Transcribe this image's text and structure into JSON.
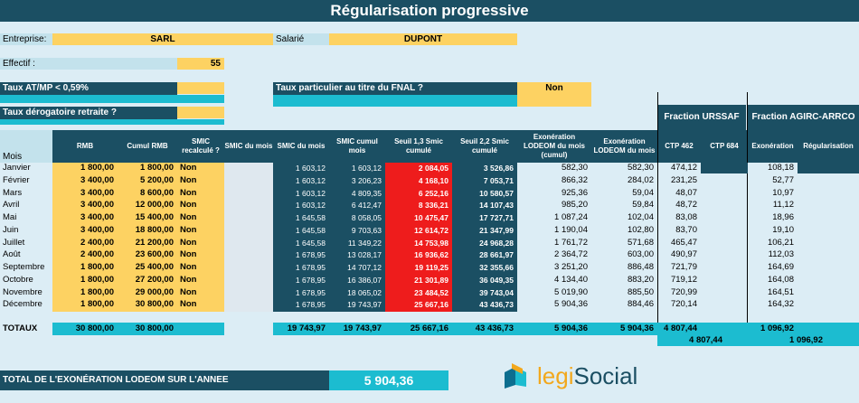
{
  "title": "Régularisation progressive",
  "header": {
    "entreprise_label": "Entreprise:",
    "entreprise_value": "SARL",
    "salarie_label": "Salarié",
    "salarie_value": "DUPONT",
    "effectif_label": "Effectif :",
    "effectif_value": "55",
    "taux_atmp_label": "Taux AT/MP < 0,59%",
    "taux_fnal_label": "Taux particulier au titre du FNAL ?",
    "taux_fnal_value": "Non",
    "taux_derog_label": "Taux dérogatoire retraite ?"
  },
  "fractions": {
    "urssaf": "Fraction URSSAF",
    "agirc": "Fraction AGIRC-ARRCO"
  },
  "columns": {
    "mois": "Mois",
    "rmb": "RMB",
    "cumul_rmb": "Cumul RMB",
    "smic_recalc": "SMIC recalculé ?",
    "smic_du_mois_1": "SMIC du mois",
    "smic_du_mois_2": "SMIC du mois",
    "smic_cumul": "SMIC cumul mois",
    "seuil13": "Seuil 1,3 Smic cumulé",
    "seuil22": "Seuil 2,2 Smic cumulé",
    "exo_cumul": "Exonération LODEOM du mois (cumul)",
    "exo_mois": "Exonération LODEOM du mois",
    "ctp462": "CTP 462",
    "ctp684": "CTP 684",
    "exoneration": "Exonération",
    "regularisation": "Régularisation"
  },
  "rows": [
    {
      "mois": "Janvier",
      "rmb": "1 800,00",
      "cumul": "1 800,00",
      "recalc": "Non",
      "smic": "1 603,12",
      "smic_cumul": "1 603,12",
      "seuil13": "2 084,05",
      "seuil22": "3 526,86",
      "exo_cumul": "582,30",
      "exo_mois": "582,30",
      "ctp462": "474,12",
      "ctp684": "",
      "agirc_exo": "108,18",
      "regul": ""
    },
    {
      "mois": "Février",
      "rmb": "3 400,00",
      "cumul": "5 200,00",
      "recalc": "Non",
      "smic": "1 603,12",
      "smic_cumul": "3 206,23",
      "seuil13": "4 168,10",
      "seuil22": "7 053,71",
      "exo_cumul": "866,32",
      "exo_mois": "284,02",
      "ctp462": "231,25",
      "ctp684": "",
      "agirc_exo": "52,77",
      "regul": ""
    },
    {
      "mois": "Mars",
      "rmb": "3 400,00",
      "cumul": "8 600,00",
      "recalc": "Non",
      "smic": "1 603,12",
      "smic_cumul": "4 809,35",
      "seuil13": "6 252,16",
      "seuil22": "10 580,57",
      "exo_cumul": "925,36",
      "exo_mois": "59,04",
      "ctp462": "48,07",
      "ctp684": "",
      "agirc_exo": "10,97",
      "regul": ""
    },
    {
      "mois": "Avril",
      "rmb": "3 400,00",
      "cumul": "12 000,00",
      "recalc": "Non",
      "smic": "1 603,12",
      "smic_cumul": "6 412,47",
      "seuil13": "8 336,21",
      "seuil22": "14 107,43",
      "exo_cumul": "985,20",
      "exo_mois": "59,84",
      "ctp462": "48,72",
      "ctp684": "",
      "agirc_exo": "11,12",
      "regul": ""
    },
    {
      "mois": "Mai",
      "rmb": "3 400,00",
      "cumul": "15 400,00",
      "recalc": "Non",
      "smic": "1 645,58",
      "smic_cumul": "8 058,05",
      "seuil13": "10 475,47",
      "seuil22": "17 727,71",
      "exo_cumul": "1 087,24",
      "exo_mois": "102,04",
      "ctp462": "83,08",
      "ctp684": "",
      "agirc_exo": "18,96",
      "regul": ""
    },
    {
      "mois": "Juin",
      "rmb": "3 400,00",
      "cumul": "18 800,00",
      "recalc": "Non",
      "smic": "1 645,58",
      "smic_cumul": "9 703,63",
      "seuil13": "12 614,72",
      "seuil22": "21 347,99",
      "exo_cumul": "1 190,04",
      "exo_mois": "102,80",
      "ctp462": "83,70",
      "ctp684": "",
      "agirc_exo": "19,10",
      "regul": ""
    },
    {
      "mois": "Juillet",
      "rmb": "2 400,00",
      "cumul": "21 200,00",
      "recalc": "Non",
      "smic": "1 645,58",
      "smic_cumul": "11 349,22",
      "seuil13": "14 753,98",
      "seuil22": "24 968,28",
      "exo_cumul": "1 761,72",
      "exo_mois": "571,68",
      "ctp462": "465,47",
      "ctp684": "",
      "agirc_exo": "106,21",
      "regul": ""
    },
    {
      "mois": "Août",
      "rmb": "2 400,00",
      "cumul": "23 600,00",
      "recalc": "Non",
      "smic": "1 678,95",
      "smic_cumul": "13 028,17",
      "seuil13": "16 936,62",
      "seuil22": "28 661,97",
      "exo_cumul": "2 364,72",
      "exo_mois": "603,00",
      "ctp462": "490,97",
      "ctp684": "",
      "agirc_exo": "112,03",
      "regul": ""
    },
    {
      "mois": "Septembre",
      "rmb": "1 800,00",
      "cumul": "25 400,00",
      "recalc": "Non",
      "smic": "1 678,95",
      "smic_cumul": "14 707,12",
      "seuil13": "19 119,25",
      "seuil22": "32 355,66",
      "exo_cumul": "3 251,20",
      "exo_mois": "886,48",
      "ctp462": "721,79",
      "ctp684": "",
      "agirc_exo": "164,69",
      "regul": ""
    },
    {
      "mois": "Octobre",
      "rmb": "1 800,00",
      "cumul": "27 200,00",
      "recalc": "Non",
      "smic": "1 678,95",
      "smic_cumul": "16 386,07",
      "seuil13": "21 301,89",
      "seuil22": "36 049,35",
      "exo_cumul": "4 134,40",
      "exo_mois": "883,20",
      "ctp462": "719,12",
      "ctp684": "",
      "agirc_exo": "164,08",
      "regul": ""
    },
    {
      "mois": "Novembre",
      "rmb": "1 800,00",
      "cumul": "29 000,00",
      "recalc": "Non",
      "smic": "1 678,95",
      "smic_cumul": "18 065,02",
      "seuil13": "23 484,52",
      "seuil22": "39 743,04",
      "exo_cumul": "5 019,90",
      "exo_mois": "885,50",
      "ctp462": "720,99",
      "ctp684": "",
      "agirc_exo": "164,51",
      "regul": ""
    },
    {
      "mois": "Décembre",
      "rmb": "1 800,00",
      "cumul": "30 800,00",
      "recalc": "Non",
      "smic": "1 678,95",
      "smic_cumul": "19 743,97",
      "seuil13": "25 667,16",
      "seuil22": "43 436,73",
      "exo_cumul": "5 904,36",
      "exo_mois": "884,46",
      "ctp462": "720,14",
      "ctp684": "",
      "agirc_exo": "164,32",
      "regul": ""
    }
  ],
  "totals": {
    "label": "TOTAUX",
    "rmb": "30 800,00",
    "cumul": "30 800,00",
    "smic": "19 743,97",
    "smic_cumul": "19 743,97",
    "seuil13": "25 667,16",
    "seuil22": "43 436,73",
    "exo_cumul": "5 904,36",
    "exo_mois": "5 904,36",
    "ctp462": "4 807,44",
    "agirc": "1 096,92",
    "urssaf_sum": "4 807,44",
    "agirc_sum": "1 096,92"
  },
  "total_annee": {
    "label": "TOTAL DE L'EXONÉRATION LODEOM SUR L'ANNEE",
    "value": "5 904,36"
  },
  "logo": {
    "text": "legiSocial",
    "prefix": "legi",
    "suffix": "Social"
  },
  "colors": {
    "dark": "#1b4f63",
    "cyan": "#1cbcd0",
    "yellow": "#fdd262",
    "red": "#ee1c1c",
    "light": "#c3e2ec"
  }
}
